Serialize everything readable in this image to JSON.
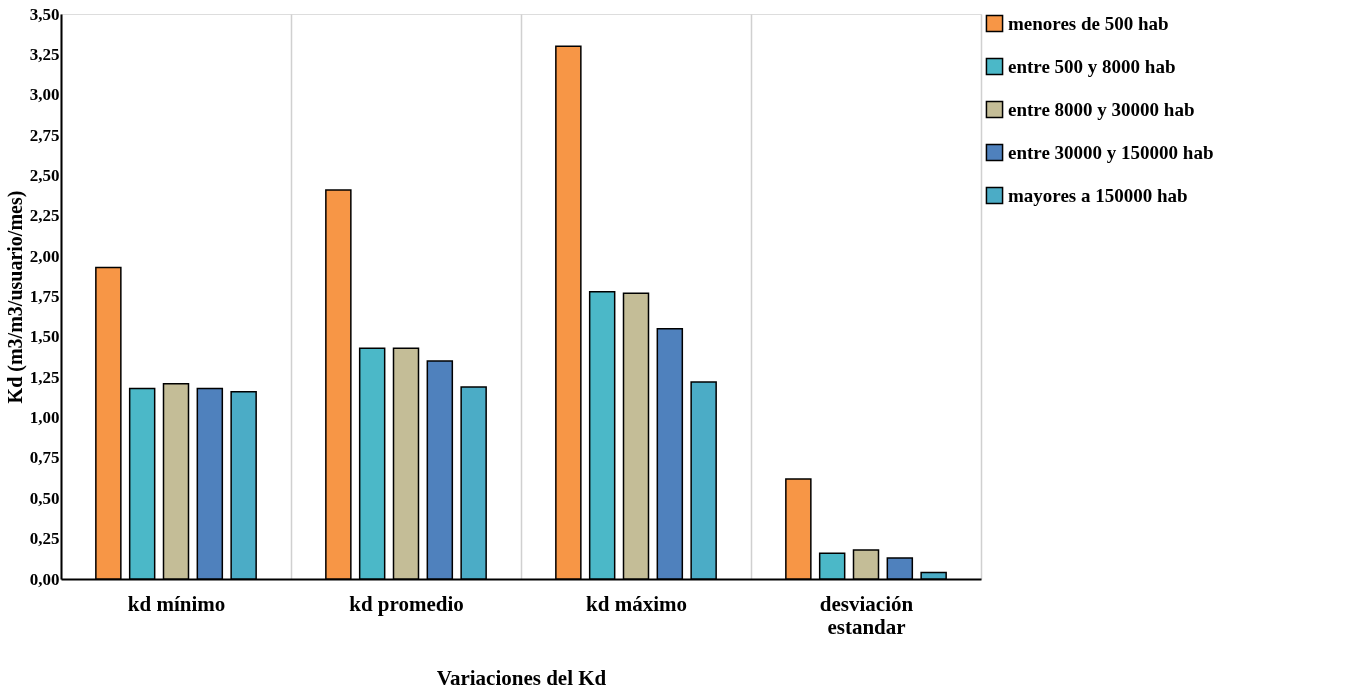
{
  "chart_data": {
    "type": "bar",
    "xlabel": "Variaciones del Kd",
    "ylabel": "Kd (m3/m3/usuario/mes)",
    "categories": [
      "kd mínimo",
      "kd promedio",
      "kd máximo",
      "desviación estandar"
    ],
    "series": [
      {
        "name": "menores de 500 hab",
        "color": "#f79646",
        "values": [
          1.93,
          2.41,
          3.3,
          0.62
        ]
      },
      {
        "name": "entre 500 y 8000 hab",
        "color": "#4bb8c8",
        "values": [
          1.18,
          1.43,
          1.78,
          0.16
        ]
      },
      {
        "name": "entre 8000 y 30000 hab",
        "color": "#c4bd97",
        "values": [
          1.21,
          1.43,
          1.77,
          0.18
        ]
      },
      {
        "name": "entre 30000 y 150000 hab",
        "color": "#4f81bd",
        "values": [
          1.18,
          1.35,
          1.55,
          0.13
        ]
      },
      {
        "name": "mayores a 150000 hab",
        "color": "#4bacc6",
        "values": [
          1.16,
          1.19,
          1.22,
          0.04
        ]
      }
    ],
    "ylim": [
      0,
      3.5
    ],
    "yticks": [
      {
        "value": 0,
        "label": "0,00"
      },
      {
        "value": 0.25,
        "label": "0,25"
      },
      {
        "value": 0.5,
        "label": "0,50"
      },
      {
        "value": 0.75,
        "label": "0,75"
      },
      {
        "value": 1,
        "label": "1,00"
      },
      {
        "value": 1.25,
        "label": "1,25"
      },
      {
        "value": 1.5,
        "label": "1,50"
      },
      {
        "value": 1.75,
        "label": "1,75"
      },
      {
        "value": 2,
        "label": "2,00"
      },
      {
        "value": 2.25,
        "label": "2,25"
      },
      {
        "value": 2.5,
        "label": "2,50"
      },
      {
        "value": 2.75,
        "label": "2,75"
      },
      {
        "value": 3,
        "label": "3,00"
      },
      {
        "value": 3.25,
        "label": "3,25"
      },
      {
        "value": 3.5,
        "label": "3,50"
      }
    ],
    "grid": "x",
    "legend": "right"
  }
}
